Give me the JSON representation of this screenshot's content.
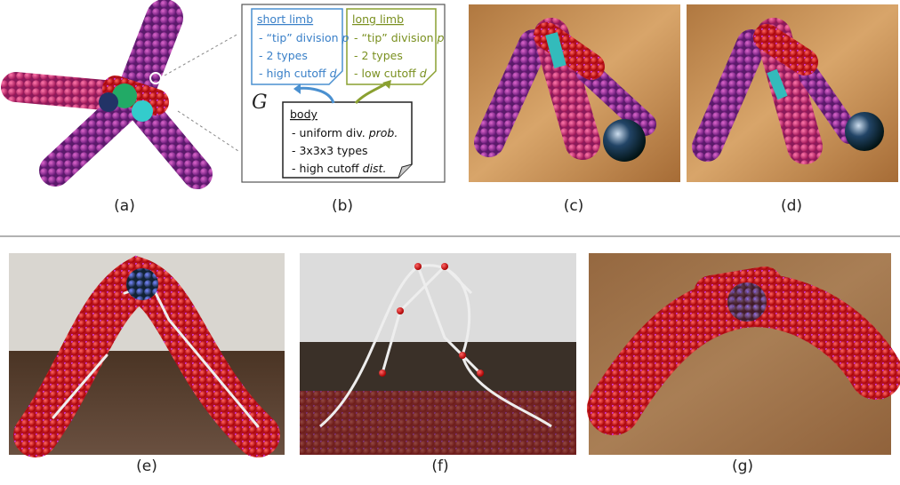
{
  "panel_labels": [
    "(a)",
    "(b)",
    "(c)",
    "(d)",
    "(e)",
    "(f)",
    "(g)"
  ],
  "diagram": {
    "symbol": "G",
    "short_limb": {
      "title": "short limb",
      "lines": [
        [
          "- “tip” division ",
          "p"
        ],
        [
          "- 2 types"
        ],
        [
          "- high cutoff ",
          "d"
        ]
      ]
    },
    "long_limb": {
      "title": "long limb",
      "lines": [
        [
          "- “tip” division ",
          "p"
        ],
        [
          "- 2 types"
        ],
        [
          "- low cutoff ",
          "d"
        ]
      ]
    },
    "body": {
      "title": "body",
      "lines": [
        [
          "- uniform div. ",
          "prob."
        ],
        [
          "- 3x3x3 types"
        ],
        [
          "- high cutoff ",
          "dist."
        ]
      ]
    }
  }
}
